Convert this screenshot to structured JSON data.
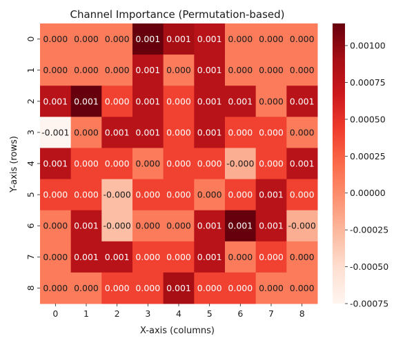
{
  "chart_data": {
    "type": "heatmap",
    "title": "Channel Importance (Permutation-based)",
    "xlabel": "X-axis (columns)",
    "ylabel": "Y-axis (rows)",
    "x_categories": [
      "0",
      "1",
      "2",
      "3",
      "4",
      "5",
      "6",
      "7",
      "8"
    ],
    "y_categories": [
      "0",
      "1",
      "2",
      "3",
      "4",
      "5",
      "6",
      "7",
      "8"
    ],
    "values": [
      [
        0.0001,
        0.0001,
        0.0001,
        0.00115,
        0.0009,
        0.0008,
        0.0001,
        0.0001,
        0.0001
      ],
      [
        0.0001,
        0.0001,
        0.0001,
        0.0008,
        0.0001,
        0.0008,
        0.0001,
        0.0001,
        0.0001
      ],
      [
        0.0008,
        0.00115,
        0.0004,
        0.0008,
        0.0004,
        0.0008,
        0.0008,
        0.0001,
        0.0008
      ],
      [
        -0.00075,
        0.0001,
        0.0008,
        0.0008,
        0.0004,
        0.0008,
        0.0004,
        0.0004,
        0.0001
      ],
      [
        0.0008,
        0.0004,
        0.0004,
        0.0001,
        0.0004,
        0.0004,
        -0.0002,
        0.0004,
        0.0008
      ],
      [
        0.0004,
        0.0004,
        -0.0003,
        0.0004,
        0.0004,
        0.0001,
        0.0004,
        0.0008,
        0.0004
      ],
      [
        0.0001,
        0.0008,
        -0.0003,
        0.0001,
        0.0001,
        0.0008,
        0.00115,
        0.0008,
        -0.0002
      ],
      [
        0.0001,
        0.0008,
        0.0008,
        0.0004,
        0.0004,
        0.0008,
        0.0001,
        0.0004,
        0.0001
      ],
      [
        0.0001,
        0.0001,
        0.0004,
        0.0004,
        0.0009,
        0.0004,
        0.0004,
        0.0001,
        0.0001
      ]
    ],
    "cell_labels": [
      [
        "0.000",
        "0.000",
        "0.000",
        "0.001",
        "0.001",
        "0.001",
        "0.000",
        "0.000",
        "0.000"
      ],
      [
        "0.000",
        "0.000",
        "0.000",
        "0.001",
        "0.000",
        "0.001",
        "0.000",
        "0.000",
        "0.000"
      ],
      [
        "0.001",
        "0.001",
        "0.000",
        "0.001",
        "0.000",
        "0.001",
        "0.001",
        "0.000",
        "0.001"
      ],
      [
        "-0.001",
        "0.000",
        "0.001",
        "0.001",
        "0.000",
        "0.001",
        "0.000",
        "0.000",
        "0.000"
      ],
      [
        "0.001",
        "0.000",
        "0.000",
        "0.000",
        "0.000",
        "0.000",
        "-0.000",
        "0.000",
        "0.001"
      ],
      [
        "0.000",
        "0.000",
        "-0.000",
        "0.000",
        "0.000",
        "0.000",
        "0.000",
        "0.001",
        "0.000"
      ],
      [
        "0.000",
        "0.001",
        "-0.000",
        "0.000",
        "0.000",
        "0.001",
        "0.001",
        "0.001",
        "-0.000"
      ],
      [
        "0.000",
        "0.001",
        "0.001",
        "0.000",
        "0.000",
        "0.001",
        "0.000",
        "0.000",
        "0.000"
      ],
      [
        "0.000",
        "0.000",
        "0.000",
        "0.000",
        "0.001",
        "0.000",
        "0.000",
        "0.000",
        "0.000"
      ]
    ],
    "colormap": "Reds",
    "vmin": -0.00075,
    "vmax": 0.00115,
    "colorbar_ticks": [
      0.001,
      0.00075,
      0.0005,
      0.00025,
      0.0,
      -0.00025,
      -0.0005,
      -0.00075
    ],
    "colorbar_tick_labels": [
      "0.00100",
      "0.00075",
      "0.00050",
      "0.00025",
      "0.00000",
      "-0.00025",
      "-0.00050",
      "-0.00075"
    ],
    "grid": false,
    "legend": "colorbar-right"
  }
}
